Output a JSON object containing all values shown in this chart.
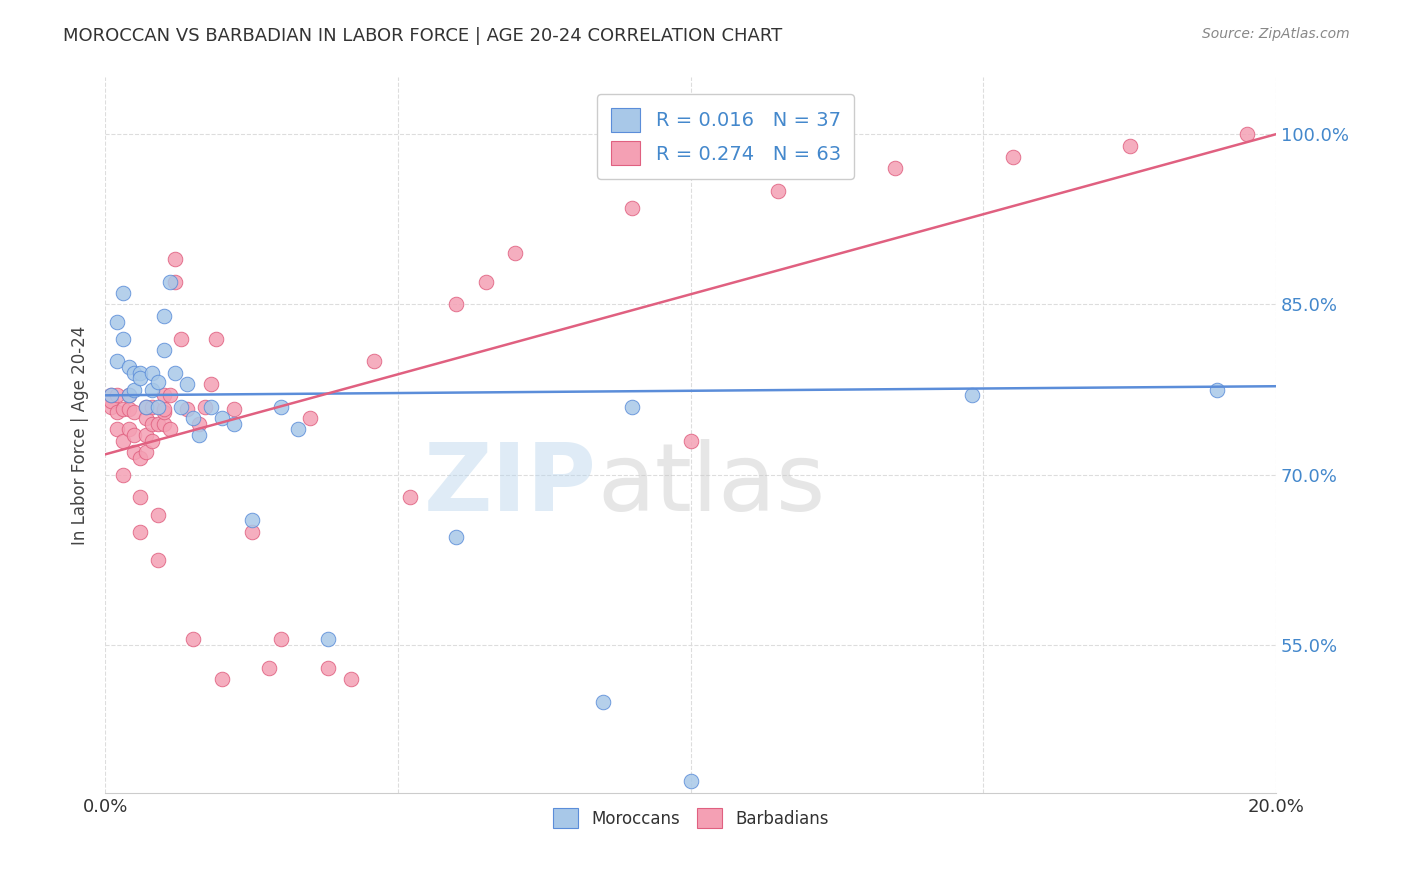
{
  "title": "MOROCCAN VS BARBADIAN IN LABOR FORCE | AGE 20-24 CORRELATION CHART",
  "source": "Source: ZipAtlas.com",
  "ylabel": "In Labor Force | Age 20-24",
  "ytick_labels": [
    "55.0%",
    "70.0%",
    "85.0%",
    "100.0%"
  ],
  "ytick_values": [
    0.55,
    0.7,
    0.85,
    1.0
  ],
  "xlim": [
    0.0,
    0.2
  ],
  "ylim": [
    0.42,
    1.05
  ],
  "background_color": "#ffffff",
  "grid_color": "#dddddd",
  "watermark_zip": "ZIP",
  "watermark_atlas": "atlas",
  "moroccan_color": "#a8c8e8",
  "barbadian_color": "#f4a0b4",
  "moroccan_line_color": "#5b8dd9",
  "barbadian_line_color": "#e06080",
  "legend_R_moroccan": "R = 0.016",
  "legend_N_moroccan": "N = 37",
  "legend_R_barbadian": "R = 0.274",
  "legend_N_barbadian": "N = 63",
  "moroccan_line_x0": 0.0,
  "moroccan_line_y0": 0.77,
  "moroccan_line_x1": 0.2,
  "moroccan_line_y1": 0.778,
  "barbadian_line_x0": 0.0,
  "barbadian_line_y0": 0.718,
  "barbadian_line_x1": 0.2,
  "barbadian_line_y1": 1.0,
  "moroccan_x": [
    0.001,
    0.002,
    0.002,
    0.003,
    0.003,
    0.004,
    0.004,
    0.005,
    0.005,
    0.006,
    0.006,
    0.007,
    0.008,
    0.008,
    0.009,
    0.009,
    0.01,
    0.01,
    0.011,
    0.012,
    0.013,
    0.014,
    0.015,
    0.016,
    0.018,
    0.02,
    0.022,
    0.025,
    0.03,
    0.033,
    0.038,
    0.06,
    0.085,
    0.09,
    0.1,
    0.148,
    0.19
  ],
  "moroccan_y": [
    0.77,
    0.8,
    0.835,
    0.86,
    0.82,
    0.795,
    0.77,
    0.79,
    0.775,
    0.79,
    0.785,
    0.76,
    0.775,
    0.79,
    0.76,
    0.782,
    0.81,
    0.84,
    0.87,
    0.79,
    0.76,
    0.78,
    0.75,
    0.735,
    0.76,
    0.75,
    0.745,
    0.66,
    0.76,
    0.74,
    0.555,
    0.645,
    0.5,
    0.76,
    0.43,
    0.77,
    0.775
  ],
  "barbadian_x": [
    0.001,
    0.001,
    0.001,
    0.002,
    0.002,
    0.002,
    0.003,
    0.003,
    0.003,
    0.004,
    0.004,
    0.004,
    0.005,
    0.005,
    0.005,
    0.006,
    0.006,
    0.006,
    0.007,
    0.007,
    0.007,
    0.007,
    0.008,
    0.008,
    0.008,
    0.009,
    0.009,
    0.009,
    0.01,
    0.01,
    0.01,
    0.01,
    0.011,
    0.011,
    0.012,
    0.012,
    0.013,
    0.014,
    0.015,
    0.016,
    0.017,
    0.018,
    0.019,
    0.02,
    0.022,
    0.025,
    0.028,
    0.03,
    0.035,
    0.038,
    0.042,
    0.046,
    0.052,
    0.06,
    0.065,
    0.07,
    0.09,
    0.1,
    0.115,
    0.135,
    0.155,
    0.175,
    0.195
  ],
  "barbadian_y": [
    0.76,
    0.765,
    0.77,
    0.74,
    0.755,
    0.77,
    0.7,
    0.73,
    0.758,
    0.74,
    0.758,
    0.77,
    0.72,
    0.735,
    0.755,
    0.65,
    0.68,
    0.715,
    0.72,
    0.735,
    0.75,
    0.76,
    0.73,
    0.745,
    0.76,
    0.625,
    0.665,
    0.745,
    0.745,
    0.755,
    0.758,
    0.77,
    0.74,
    0.77,
    0.87,
    0.89,
    0.82,
    0.758,
    0.555,
    0.745,
    0.76,
    0.78,
    0.82,
    0.52,
    0.758,
    0.65,
    0.53,
    0.555,
    0.75,
    0.53,
    0.52,
    0.8,
    0.68,
    0.85,
    0.87,
    0.895,
    0.935,
    0.73,
    0.95,
    0.97,
    0.98,
    0.99,
    1.0
  ]
}
